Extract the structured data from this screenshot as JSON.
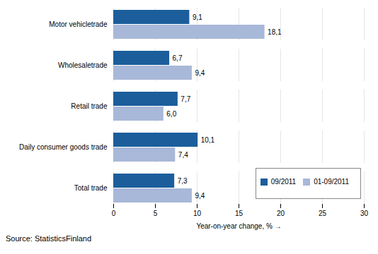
{
  "chart_data": {
    "type": "bar",
    "orientation": "horizontal",
    "categories": [
      "Motor vehicletrade",
      "Wholesaletrade",
      "Retail trade",
      "Daily consumer goods trade",
      "Total trade"
    ],
    "series": [
      {
        "name": "09/2011",
        "color": "#1B5E9B",
        "values": [
          9.1,
          6.7,
          7.7,
          10.1,
          7.3
        ],
        "value_labels": [
          "9,1",
          "6,7",
          "7,7",
          "10,1",
          "7,3"
        ]
      },
      {
        "name": "01-09/2011",
        "color": "#A8B8D8",
        "values": [
          18.1,
          9.4,
          6.0,
          7.4,
          9.4
        ],
        "value_labels": [
          "18,1",
          "9,4",
          "6,0",
          "7,4",
          "9,4"
        ]
      }
    ],
    "xlabel": "Year-on-year change, %",
    "xlim": [
      0,
      30
    ],
    "xticks": [
      0,
      5,
      10,
      15,
      20,
      25,
      30
    ],
    "grid": true,
    "data_labels": true,
    "legend": "lower right",
    "caption": "Source: StatisticsFinland"
  }
}
